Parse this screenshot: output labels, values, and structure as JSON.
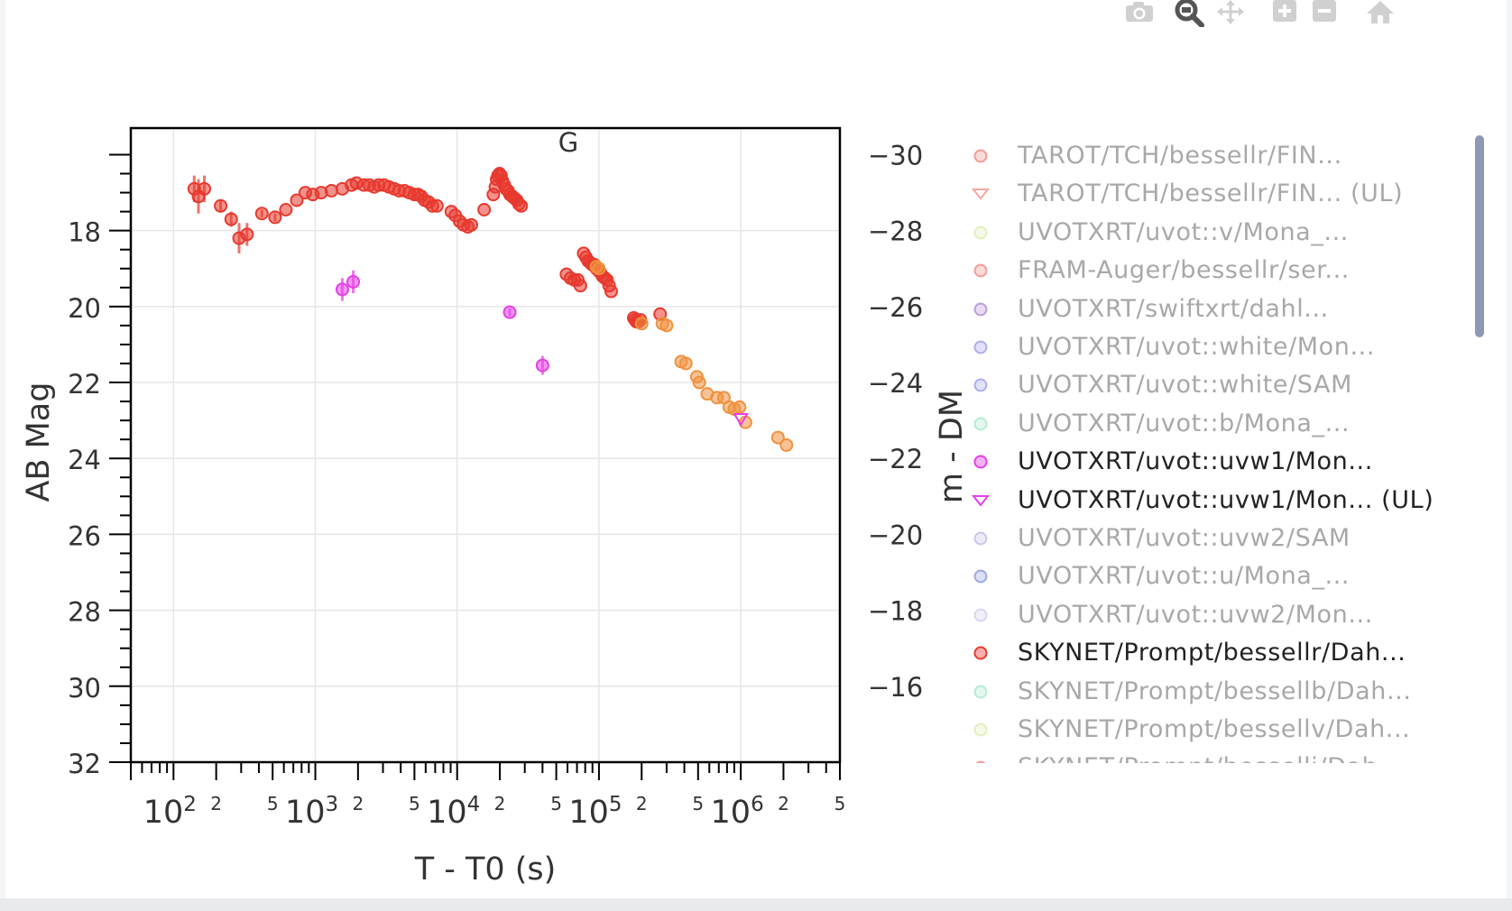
{
  "modebar": {
    "buttons": [
      {
        "name": "camera-icon",
        "title": "Download plot as a png"
      },
      {
        "name": "zoom-icon",
        "title": "Zoom"
      },
      {
        "name": "pan-icon",
        "title": "Pan"
      },
      {
        "name": "zoom-in-icon",
        "title": "Zoom in"
      },
      {
        "name": "zoom-out-icon",
        "title": "Zoom out"
      },
      {
        "name": "home-icon",
        "title": "Reset axes"
      }
    ]
  },
  "chart_data": {
    "type": "scatter",
    "title": "G",
    "xlabel": "T - T0 (s)",
    "ylabel": "AB Mag",
    "y2label": "m - DM",
    "x_scale": "log",
    "xlim": [
      50,
      5000000
    ],
    "ylim": [
      32,
      15.3
    ],
    "y_reversed": true,
    "y2lim": [
      -14,
      -30.7
    ],
    "x_tick_labels": [
      {
        "base": "10",
        "exp": "2",
        "value": 100
      },
      {
        "base": "10",
        "exp": "3",
        "value": 1000
      },
      {
        "base": "10",
        "exp": "4",
        "value": 10000
      },
      {
        "base": "10",
        "exp": "5",
        "value": 100000
      },
      {
        "base": "10",
        "exp": "6",
        "value": 1000000
      }
    ],
    "x_minor_tick_labels": [
      "2",
      "5"
    ],
    "y_ticks": [
      "18",
      "20",
      "22",
      "24",
      "26",
      "28",
      "30",
      "32"
    ],
    "y2_ticks": [
      "−30",
      "−28",
      "−26",
      "−24",
      "−22",
      "−20",
      "−18",
      "−16"
    ],
    "grid": true,
    "legend_position": "right",
    "legend": [
      {
        "label": "TAROT/TCH/bessellr/FIN...",
        "color": "#e8392e",
        "symbol": "circle",
        "visible": false
      },
      {
        "label": "TAROT/TCH/bessellr/FIN... (UL)",
        "color": "#e8392e",
        "symbol": "triangle-down",
        "visible": false
      },
      {
        "label": "UVOTXRT/uvot::v/Mona_...",
        "color": "#c5e07a",
        "symbol": "circle",
        "visible": false
      },
      {
        "label": "FRAM-Auger/bessellr/ser...",
        "color": "#e8392e",
        "symbol": "circle",
        "visible": false
      },
      {
        "label": "UVOTXRT/swiftxrt/dahl...",
        "color": "#7b3fb5",
        "symbol": "circle",
        "visible": false
      },
      {
        "label": "UVOTXRT/uvot::white/Mon...",
        "color": "#5a5ee0",
        "symbol": "circle",
        "visible": false
      },
      {
        "label": "UVOTXRT/uvot::white/SAM",
        "color": "#5a5ee0",
        "symbol": "circle",
        "visible": false
      },
      {
        "label": "UVOTXRT/uvot::b/Mona_...",
        "color": "#6ed6a8",
        "symbol": "circle",
        "visible": false
      },
      {
        "label": "UVOTXRT/uvot::uvw1/Mon...",
        "color": "#e63fe6",
        "symbol": "circle",
        "visible": true
      },
      {
        "label": "UVOTXRT/uvot::uvw1/Mon... (UL)",
        "color": "#e63fe6",
        "symbol": "triangle-down",
        "visible": true
      },
      {
        "label": "UVOTXRT/uvot::uvw2/SAM",
        "color": "#9a8fd6",
        "symbol": "circle",
        "visible": false
      },
      {
        "label": "UVOTXRT/uvot::u/Mona_...",
        "color": "#3f52c6",
        "symbol": "circle",
        "visible": false
      },
      {
        "label": "UVOTXRT/uvot::uvw2/Mon...",
        "color": "#b4aee0",
        "symbol": "circle",
        "visible": false
      },
      {
        "label": "SKYNET/Prompt/bessellr/Dah...",
        "color": "#e8392e",
        "symbol": "circle",
        "visible": true
      },
      {
        "label": "SKYNET/Prompt/bessellb/Dah...",
        "color": "#6ed6a8",
        "symbol": "circle",
        "visible": false
      },
      {
        "label": "SKYNET/Prompt/bessellv/Dah...",
        "color": "#c5e07a",
        "symbol": "circle",
        "visible": false
      },
      {
        "label": "SKYNET/Prompt/besselli/Dah...",
        "color": "#e8392e",
        "symbol": "circle",
        "visible": false
      }
    ],
    "series": [
      {
        "name": "SKYNET/Prompt/bessellr/Dah...",
        "color": "#e8392e",
        "symbol": "circle",
        "points": [
          {
            "x": 140,
            "y": 16.9,
            "yerr": 0.35
          },
          {
            "x": 150,
            "y": 17.1,
            "yerr": 0.45
          },
          {
            "x": 165,
            "y": 16.9,
            "yerr": 0.35
          },
          {
            "x": 215,
            "y": 17.35,
            "yerr": 0.15
          },
          {
            "x": 255,
            "y": 17.7,
            "yerr": 0.2
          },
          {
            "x": 290,
            "y": 18.2,
            "yerr": 0.4
          },
          {
            "x": 330,
            "y": 18.1,
            "yerr": 0.3
          },
          {
            "x": 420,
            "y": 17.55,
            "yerr": 0.1
          },
          {
            "x": 520,
            "y": 17.65,
            "yerr": 0.1
          },
          {
            "x": 620,
            "y": 17.45
          },
          {
            "x": 740,
            "y": 17.2
          },
          {
            "x": 850,
            "y": 17.0
          },
          {
            "x": 960,
            "y": 17.05
          },
          {
            "x": 1100,
            "y": 17.0
          },
          {
            "x": 1300,
            "y": 16.95
          },
          {
            "x": 1550,
            "y": 16.9
          },
          {
            "x": 1800,
            "y": 16.8
          },
          {
            "x": 1950,
            "y": 16.75
          },
          {
            "x": 2200,
            "y": 16.8
          },
          {
            "x": 2400,
            "y": 16.8
          },
          {
            "x": 2600,
            "y": 16.85
          },
          {
            "x": 2800,
            "y": 16.8
          },
          {
            "x": 3050,
            "y": 16.8
          },
          {
            "x": 3300,
            "y": 16.85
          },
          {
            "x": 3600,
            "y": 16.9
          },
          {
            "x": 3900,
            "y": 16.95
          },
          {
            "x": 4250,
            "y": 16.95
          },
          {
            "x": 4600,
            "y": 17.0
          },
          {
            "x": 5000,
            "y": 17.05
          },
          {
            "x": 5300,
            "y": 17.05
          },
          {
            "x": 5600,
            "y": 17.1
          },
          {
            "x": 5900,
            "y": 17.2
          },
          {
            "x": 6300,
            "y": 17.25
          },
          {
            "x": 6700,
            "y": 17.35
          },
          {
            "x": 7200,
            "y": 17.35
          },
          {
            "x": 9100,
            "y": 17.5
          },
          {
            "x": 9700,
            "y": 17.6
          },
          {
            "x": 10400,
            "y": 17.75
          },
          {
            "x": 11100,
            "y": 17.85
          },
          {
            "x": 11900,
            "y": 17.9
          },
          {
            "x": 12600,
            "y": 17.85
          },
          {
            "x": 15500,
            "y": 17.45
          },
          {
            "x": 18000,
            "y": 17.05
          },
          {
            "x": 18600,
            "y": 16.85
          },
          {
            "x": 19000,
            "y": 16.65
          },
          {
            "x": 19400,
            "y": 16.55
          },
          {
            "x": 19900,
            "y": 16.5
          },
          {
            "x": 20400,
            "y": 16.55
          },
          {
            "x": 20900,
            "y": 16.7
          },
          {
            "x": 21500,
            "y": 16.8
          },
          {
            "x": 22100,
            "y": 16.9
          },
          {
            "x": 22800,
            "y": 16.95
          },
          {
            "x": 23600,
            "y": 17.05
          },
          {
            "x": 24500,
            "y": 17.1
          },
          {
            "x": 25400,
            "y": 17.15
          },
          {
            "x": 26300,
            "y": 17.2
          },
          {
            "x": 27300,
            "y": 17.3
          },
          {
            "x": 28300,
            "y": 17.35
          },
          {
            "x": 59000,
            "y": 19.15
          },
          {
            "x": 63000,
            "y": 19.25
          },
          {
            "x": 67000,
            "y": 19.3
          },
          {
            "x": 71000,
            "y": 19.3
          },
          {
            "x": 74000,
            "y": 19.45
          },
          {
            "x": 78000,
            "y": 18.6
          },
          {
            "x": 81000,
            "y": 18.7
          },
          {
            "x": 84000,
            "y": 18.8
          },
          {
            "x": 87000,
            "y": 18.85
          },
          {
            "x": 90000,
            "y": 18.9
          },
          {
            "x": 93000,
            "y": 18.9
          },
          {
            "x": 96000,
            "y": 19.0
          },
          {
            "x": 99000,
            "y": 19.05
          },
          {
            "x": 102000,
            "y": 19.1
          },
          {
            "x": 106000,
            "y": 19.2
          },
          {
            "x": 110000,
            "y": 19.25
          },
          {
            "x": 114000,
            "y": 19.3
          },
          {
            "x": 118000,
            "y": 19.45
          },
          {
            "x": 122000,
            "y": 19.6
          },
          {
            "x": 176000,
            "y": 20.3
          },
          {
            "x": 180000,
            "y": 20.35
          },
          {
            "x": 184000,
            "y": 20.4
          },
          {
            "x": 190000,
            "y": 20.4
          },
          {
            "x": 196000,
            "y": 20.35
          },
          {
            "x": 270000,
            "y": 20.2
          }
        ]
      },
      {
        "name": "SKYNET/Prompt/besselli/Dah...",
        "color": "#f0913f",
        "symbol": "circle",
        "points": [
          {
            "x": 96000,
            "y": 18.95
          },
          {
            "x": 100000,
            "y": 19.0
          },
          {
            "x": 200000,
            "y": 20.45
          },
          {
            "x": 280000,
            "y": 20.45
          },
          {
            "x": 300000,
            "y": 20.5
          },
          {
            "x": 380000,
            "y": 21.45
          },
          {
            "x": 410000,
            "y": 21.5
          },
          {
            "x": 490000,
            "y": 21.85
          },
          {
            "x": 510000,
            "y": 22.0
          },
          {
            "x": 580000,
            "y": 22.3
          },
          {
            "x": 680000,
            "y": 22.4
          },
          {
            "x": 760000,
            "y": 22.4
          },
          {
            "x": 830000,
            "y": 22.65
          },
          {
            "x": 900000,
            "y": 22.7
          },
          {
            "x": 980000,
            "y": 22.65
          },
          {
            "x": 1080000,
            "y": 23.05
          },
          {
            "x": 1830000,
            "y": 23.45
          },
          {
            "x": 2100000,
            "y": 23.65
          }
        ]
      },
      {
        "name": "UVOTXRT/uvot::uvw1/Mon...",
        "color": "#e63fe6",
        "symbol": "circle",
        "points": [
          {
            "x": 1550,
            "y": 19.55,
            "yerr": 0.3
          },
          {
            "x": 1850,
            "y": 19.35,
            "yerr": 0.3
          },
          {
            "x": 23500,
            "y": 20.15,
            "yerr": 0.1
          },
          {
            "x": 40000,
            "y": 21.55,
            "yerr": 0.25
          }
        ]
      },
      {
        "name": "UVOTXRT/uvot::uvw1/Mon... (UL)",
        "color": "#e63fe6",
        "symbol": "triangle-down",
        "points": [
          {
            "x": 1000000,
            "y": 22.95
          }
        ]
      }
    ]
  },
  "legend_scrollbar": "legend-scroll"
}
